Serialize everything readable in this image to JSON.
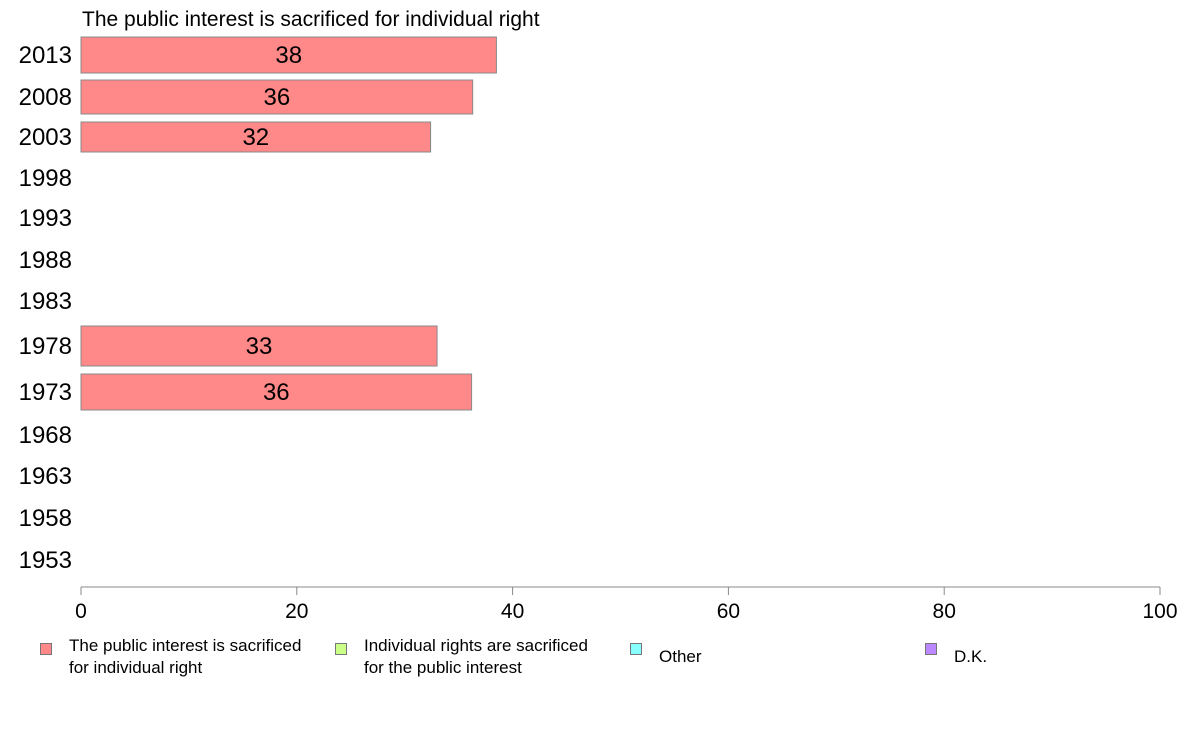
{
  "chart_data": {
    "type": "bar",
    "orientation": "horizontal",
    "title": "The public interest is sacrificed for individual right",
    "categories": [
      "2013",
      "2008",
      "2003",
      "1998",
      "1993",
      "1988",
      "1983",
      "1978",
      "1973",
      "1968",
      "1963",
      "1958",
      "1953"
    ],
    "series": [
      {
        "name": "The public interest is sacrificed for individual right",
        "color": "#ff8888",
        "values": [
          38.5,
          36.3,
          32.4,
          null,
          null,
          null,
          null,
          33,
          36.2,
          null,
          null,
          null,
          null
        ],
        "labels": [
          "38",
          "36",
          "32",
          "",
          "",
          "",
          "",
          "33",
          "36",
          "",
          "",
          "",
          ""
        ]
      }
    ],
    "xlim": [
      0,
      100
    ],
    "xticks": [
      "0",
      "20",
      "40",
      "60",
      "80",
      "100"
    ],
    "grid": false,
    "legend_position": "bottom"
  },
  "legend": [
    {
      "label": "The public interest is sacrificed\nfor individual right",
      "color": "#ff8888"
    },
    {
      "label": "Individual rights are sacrificed\nfor the public interest",
      "color": "#ccff88"
    },
    {
      "label": "Other",
      "color": "#88ffff"
    },
    {
      "label": "D.K.",
      "color": "#bb88ff"
    }
  ]
}
